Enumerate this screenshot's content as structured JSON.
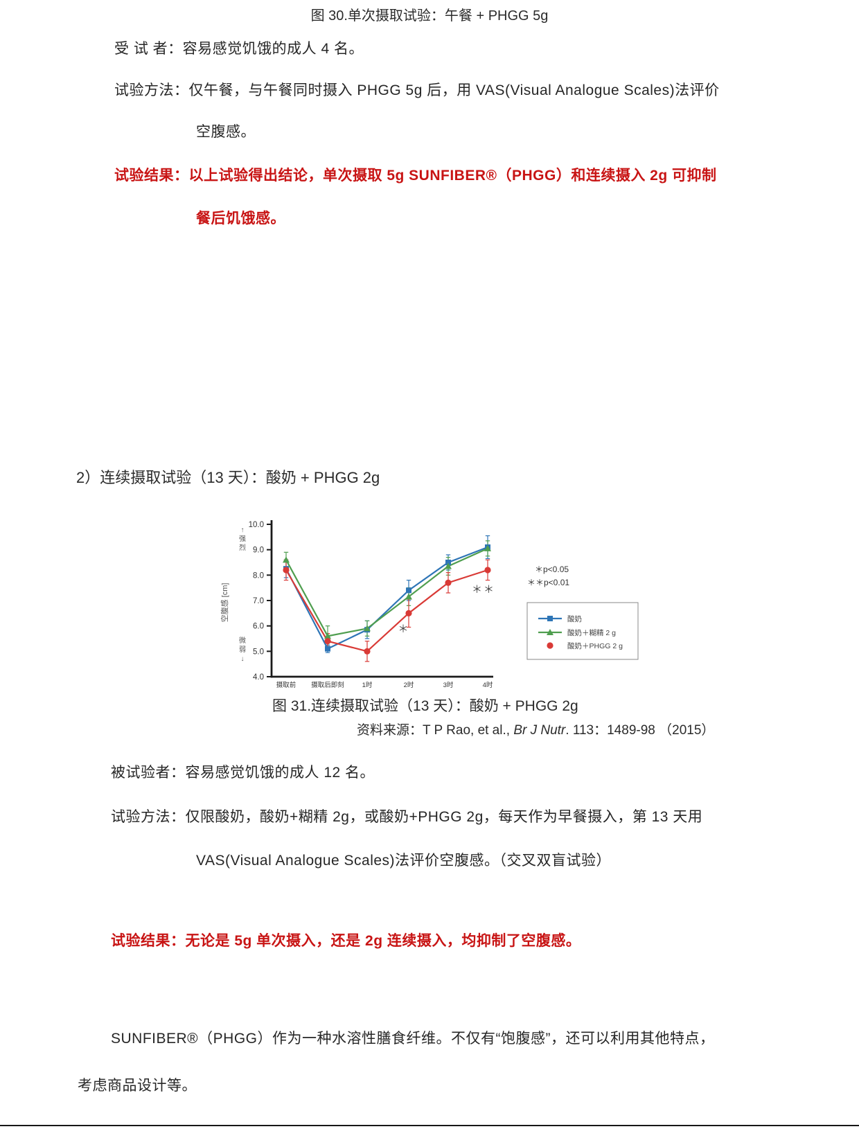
{
  "accent_red": "#c81414",
  "section1": {
    "title": "图 30.单次摄取试验：午餐 + PHGG 5g",
    "subjects": "受 试 者：容易感觉饥饿的成人 4 名。",
    "method_line1": "试验方法：仅午餐，与午餐同时摄入 PHGG 5g 后，用 VAS(Visual Analogue Scales)法评价",
    "method_line2": "空腹感。",
    "result_line1": "试验结果：以上试验得出结论，单次摄取 5g SUNFIBER®（PHGG）和连续摄入 2g 可抑制",
    "result_line2": "餐后饥饿感。"
  },
  "section2": {
    "heading": "2）连续摄取试验（13 天）：酸奶 + PHGG 2g",
    "fig_caption": "图 31.连续摄取试验（13 天）：酸奶 + PHGG 2g",
    "source_prefix": "资料来源：T P Rao, et al., ",
    "source_journal": "Br J Nutr",
    "source_suffix": ". 113：1489-98 （2015）",
    "subjects": "被试验者：容易感觉饥饿的成人 12 名。",
    "method_line1": "试验方法：仅限酸奶，酸奶+糊精 2g，或酸奶+PHGG 2g，每天作为早餐摄入，第 13 天用",
    "method_line2": "VAS(Visual Analogue Scales)法评价空腹感。（交叉双盲试验）",
    "result": "试验结果：无论是 5g 单次摄入，还是 2g 连续摄入，均抑制了空腹感。"
  },
  "closing": {
    "line1": "SUNFIBER®（PHGG）作为一种水溶性膳食纤维。不仅有“饱腹感”，还可以利用其他特点，",
    "line2": "考虑商品设计等。"
  },
  "chart_data": {
    "type": "line",
    "title": "图 31.连续摄取试验（13 天）：酸奶 + PHGG 2g",
    "categories": [
      "摄取前",
      "摄取后即刻",
      "1时",
      "2时",
      "3时",
      "4时"
    ],
    "series": [
      {
        "name": "酸奶",
        "color": "#2e75b6",
        "marker": "square",
        "values": [
          8.25,
          5.1,
          5.85,
          7.4,
          8.5,
          9.1
        ],
        "errors": [
          0.35,
          0.15,
          0.35,
          0.4,
          0.3,
          0.45
        ],
        "legend_line": true
      },
      {
        "name": "酸奶＋糊精 2 g",
        "color": "#4f9e4f",
        "marker": "triangle",
        "values": [
          8.6,
          5.6,
          5.9,
          7.15,
          8.35,
          9.05
        ],
        "errors": [
          0.3,
          0.4,
          0.3,
          0.35,
          0.35,
          0.3
        ],
        "legend_line": true
      },
      {
        "name": "酸奶＋PHGG 2 g",
        "color": "#d93a36",
        "marker": "circle",
        "values": [
          8.2,
          5.4,
          5.0,
          6.5,
          7.7,
          8.2
        ],
        "errors": [
          0.4,
          0.3,
          0.4,
          0.55,
          0.4,
          0.4
        ],
        "legend_line": false
      }
    ],
    "ylabel": "空腹感 [cm]",
    "y_top_label": "强烈",
    "y_bottom_label": "微弱",
    "ylim": [
      4,
      10
    ],
    "yticks": [
      "10.0",
      "9.0",
      "8.0",
      "7.0",
      "6.0",
      "5.0",
      "4.0"
    ],
    "legend_notes": [
      "＊p<0.05",
      "＊＊p<0.01"
    ],
    "annotations": [
      {
        "text": "＊",
        "category": 3,
        "y": 5.75,
        "dx": -7
      },
      {
        "text": "＊＊",
        "category": 5,
        "y": 7.3,
        "dx": -6
      }
    ],
    "grid": false,
    "legend_position": "right-inside"
  }
}
